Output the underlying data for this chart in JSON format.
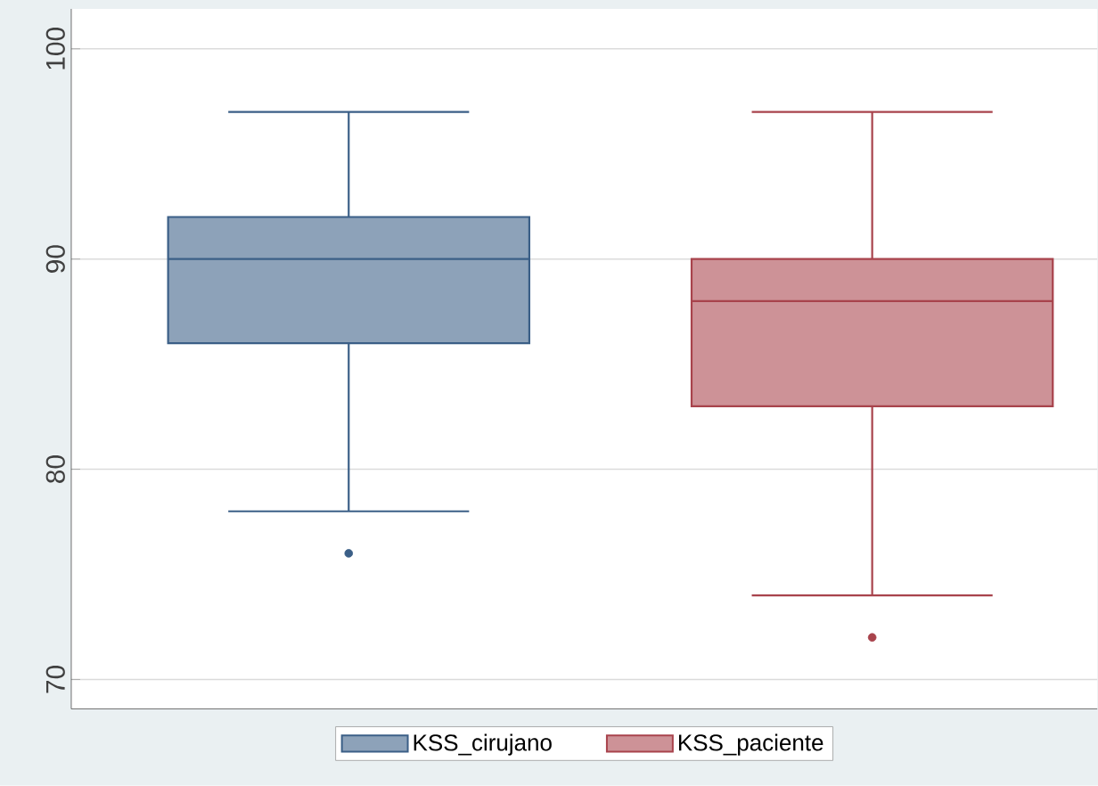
{
  "chart_data": {
    "type": "box",
    "categories": [
      null,
      null
    ],
    "series": [
      {
        "name": "KSS_cirujano",
        "color": "#3b5f87",
        "boxes": [
          {
            "low": 78,
            "q1": 86,
            "median": 90,
            "q3": 92,
            "high": 97,
            "outliers": [
              76
            ]
          },
          null
        ]
      },
      {
        "name": "KSS_paciente",
        "color": "#a8434c",
        "boxes": [
          null,
          {
            "low": 74,
            "q1": 83,
            "median": 88,
            "q3": 90,
            "high": 97,
            "outliers": [
              72
            ]
          }
        ]
      }
    ],
    "ylim": [
      68.6,
      101.9
    ],
    "yticks": [
      70,
      80,
      90,
      100
    ],
    "grid": "y",
    "legend": "bottom",
    "marker": "circle"
  }
}
